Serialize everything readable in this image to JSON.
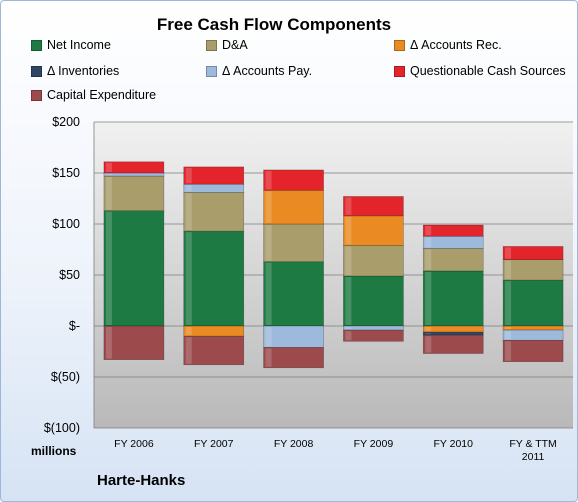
{
  "chart_data": {
    "type": "bar",
    "stacked": true,
    "title": "Free Cash Flow Components",
    "company": "Harte-Hanks",
    "ylabel_unit": "millions",
    "categories": [
      [
        "FY 2006"
      ],
      [
        "FY 2007"
      ],
      [
        "FY 2008"
      ],
      [
        "FY 2009"
      ],
      [
        "FY 2010"
      ],
      [
        "FY & TTM",
        "2011"
      ]
    ],
    "ylim": [
      -100,
      200
    ],
    "yticks": [
      {
        "value": 200,
        "label": "$200"
      },
      {
        "value": 150,
        "label": "$150"
      },
      {
        "value": 100,
        "label": "$100"
      },
      {
        "value": 50,
        "label": "$50"
      },
      {
        "value": 0,
        "label": "$-"
      },
      {
        "value": -50,
        "label": "$(50)"
      },
      {
        "value": -100,
        "label": "$(100)"
      }
    ],
    "grid": true,
    "legend_position": "top",
    "series": [
      {
        "name": "Net Income",
        "color": "#1e7a43",
        "values": [
          113,
          93,
          63,
          49,
          54,
          45
        ]
      },
      {
        "name": "D&A",
        "color": "#a99d6b",
        "values": [
          34,
          38,
          37,
          30,
          22,
          20
        ]
      },
      {
        "name": "Δ Accounts Rec.",
        "color": "#e98a22",
        "values": [
          0,
          -10,
          33,
          29,
          -6,
          -4
        ]
      },
      {
        "name": "Δ Inventories",
        "color": "#2e4663",
        "values": [
          0,
          0,
          0,
          0,
          -3,
          0
        ]
      },
      {
        "name": "Δ Accounts Pay.",
        "color": "#9db9db",
        "values": [
          3,
          8,
          -21,
          -4,
          12,
          -10
        ]
      },
      {
        "name": "Questionable Cash Sources",
        "color": "#e3242b",
        "values": [
          11,
          17,
          20,
          19,
          11,
          13
        ]
      },
      {
        "name": "Capital Expenditure",
        "color": "#9c4a4c",
        "values": [
          -33,
          -28,
          -20,
          -11,
          -18,
          -21
        ]
      }
    ]
  }
}
